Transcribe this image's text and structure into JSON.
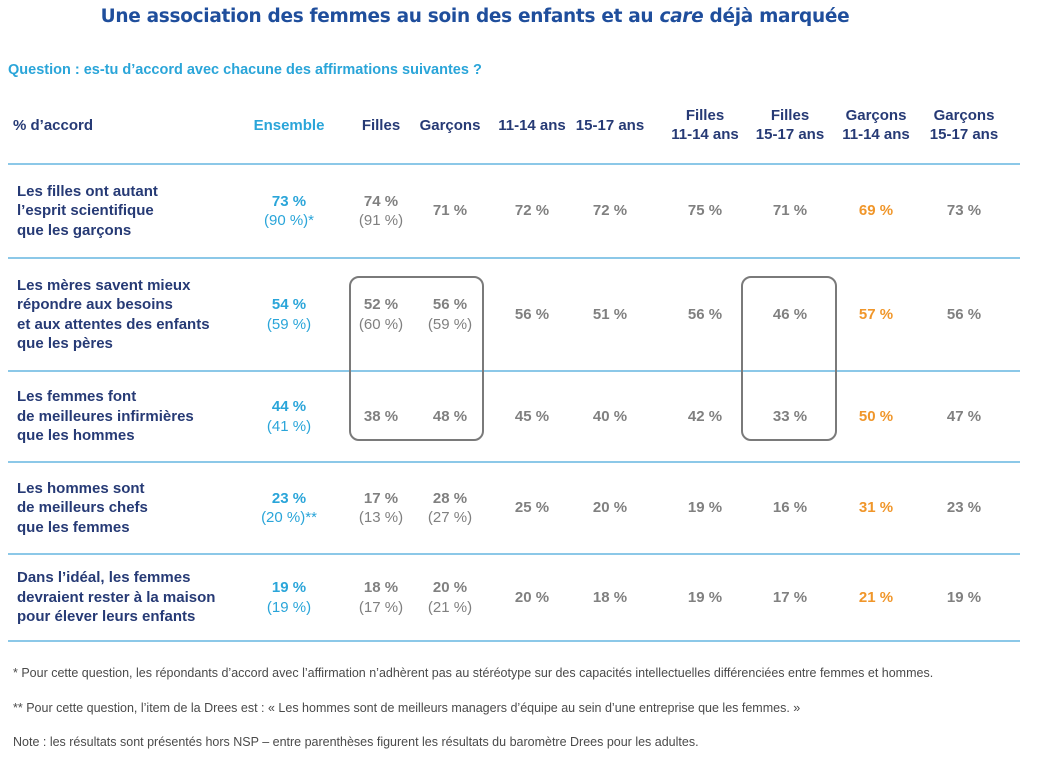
{
  "title": {
    "main": "Une association des femmes au soin des enfants et au ",
    "italic": "care",
    "end": " déjà marquée"
  },
  "question": "Question : es-tu d’accord avec chacune des affirmations suivantes ?",
  "colors": {
    "title": "#1f4e9c",
    "accent": "#2aa5d9",
    "highlight": "#f0962a",
    "value": "#808080",
    "label": "#263a75",
    "rule": "#8cc8e8"
  },
  "table": {
    "row_header": "% d’accord",
    "columns": [
      {
        "l1": "Ensemble",
        "l2": ""
      },
      {
        "l1": "Filles",
        "l2": ""
      },
      {
        "l1": "Garçons",
        "l2": ""
      },
      {
        "l1": "11-14 ans",
        "l2": ""
      },
      {
        "l1": "15-17 ans",
        "l2": ""
      },
      {
        "l1": "Filles",
        "l2": "11-14 ans"
      },
      {
        "l1": "Filles",
        "l2": "15-17 ans"
      },
      {
        "l1": "Garçons",
        "l2": "11-14 ans"
      },
      {
        "l1": "Garçons",
        "l2": "15-17 ans"
      }
    ],
    "rows": [
      {
        "label": [
          "Les filles ont autant",
          "l’esprit scientifique",
          "que les garçons"
        ],
        "cells": [
          {
            "v": "73 %",
            "p": "(90 %)*"
          },
          {
            "v": "74 %",
            "p": "(91 %)"
          },
          {
            "v": "71 %",
            "p": ""
          },
          {
            "v": "72 %",
            "p": ""
          },
          {
            "v": "72 %",
            "p": ""
          },
          {
            "v": "75 %",
            "p": ""
          },
          {
            "v": "71 %",
            "p": ""
          },
          {
            "v": "69 %",
            "p": ""
          },
          {
            "v": "73 %",
            "p": ""
          }
        ]
      },
      {
        "label": [
          "Les mères savent mieux",
          "répondre aux besoins",
          "et aux attentes des enfants",
          "que les pères"
        ],
        "cells": [
          {
            "v": "54 %",
            "p": "(59 %)"
          },
          {
            "v": "52 %",
            "p": "(60 %)"
          },
          {
            "v": "56 %",
            "p": "(59 %)"
          },
          {
            "v": "56 %",
            "p": ""
          },
          {
            "v": "51 %",
            "p": ""
          },
          {
            "v": "56 %",
            "p": ""
          },
          {
            "v": "46 %",
            "p": ""
          },
          {
            "v": "57 %",
            "p": ""
          },
          {
            "v": "56 %",
            "p": ""
          }
        ]
      },
      {
        "label": [
          "Les femmes font",
          "de meilleures infirmières",
          "que les hommes"
        ],
        "cells": [
          {
            "v": "44 %",
            "p": "(41 %)"
          },
          {
            "v": "38 %",
            "p": ""
          },
          {
            "v": "48 %",
            "p": ""
          },
          {
            "v": "45 %",
            "p": ""
          },
          {
            "v": "40 %",
            "p": ""
          },
          {
            "v": "42 %",
            "p": ""
          },
          {
            "v": "33 %",
            "p": ""
          },
          {
            "v": "50 %",
            "p": ""
          },
          {
            "v": "47 %",
            "p": ""
          }
        ]
      },
      {
        "label": [
          "Les hommes sont",
          "de meilleurs chefs",
          "que les femmes"
        ],
        "cells": [
          {
            "v": "23 %",
            "p": "(20 %)**"
          },
          {
            "v": "17 %",
            "p": "(13 %)"
          },
          {
            "v": "28 %",
            "p": "(27 %)"
          },
          {
            "v": "25 %",
            "p": ""
          },
          {
            "v": "20 %",
            "p": ""
          },
          {
            "v": "19 %",
            "p": ""
          },
          {
            "v": "16 %",
            "p": ""
          },
          {
            "v": "31 %",
            "p": ""
          },
          {
            "v": "23 %",
            "p": ""
          }
        ]
      },
      {
        "label": [
          "Dans l’idéal, les femmes",
          "devraient rester à la maison",
          "pour élever leurs enfants"
        ],
        "cells": [
          {
            "v": "19 %",
            "p": "(19 %)"
          },
          {
            "v": "18 %",
            "p": "(17 %)"
          },
          {
            "v": "20 %",
            "p": "(21 %)"
          },
          {
            "v": "20 %",
            "p": ""
          },
          {
            "v": "18 %",
            "p": ""
          },
          {
            "v": "19 %",
            "p": ""
          },
          {
            "v": "17 %",
            "p": ""
          },
          {
            "v": "21 %",
            "p": ""
          },
          {
            "v": "19 %",
            "p": ""
          }
        ]
      }
    ],
    "highlighted_boxes": [
      {
        "columns": [
          "Filles",
          "Garçons"
        ],
        "rows": [
          2,
          3
        ]
      },
      {
        "columns": [
          "Filles 15-17 ans"
        ],
        "rows": [
          2,
          3
        ]
      }
    ]
  },
  "notes": [
    "* Pour cette question, les répondants d’accord avec l’affirmation n’adhèrent pas au stéréotype sur des capacités intellectuelles différenciées entre femmes et hommes.",
    "** Pour cette question, l’item de la Drees est : « Les hommes sont de meilleurs managers d’équipe au sein d’une entreprise que les femmes. »",
    "Note : les résultats sont présentés hors NSP – entre parenthèses figurent les résultats du baromètre Drees pour les adultes."
  ]
}
